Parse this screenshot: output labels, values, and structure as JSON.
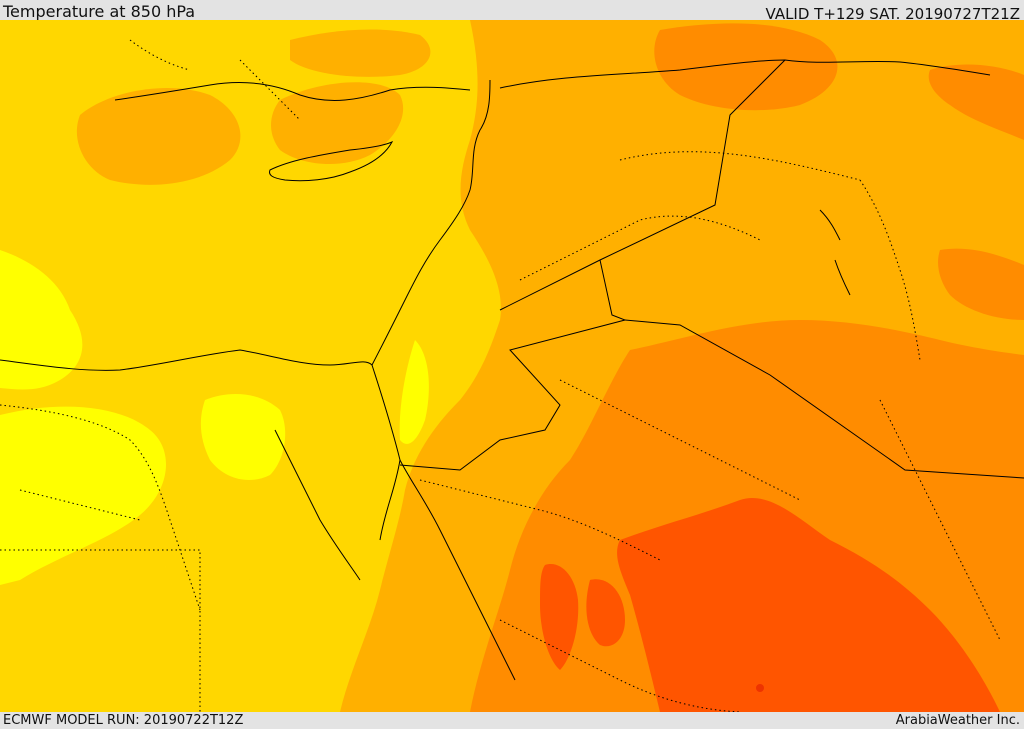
{
  "header": {
    "title": "Temperature at 850 hPa",
    "valid": "VALID T+129 SAT. 20190727T21Z"
  },
  "footer": {
    "model_run": "ECMWF MODEL RUN: 20190722T12Z",
    "credit": "ArabiaWeather Inc."
  },
  "colors": {
    "band_light_yellow": "#ffff00",
    "band_yellow": "#ffd700",
    "band_gold": "#ffb000",
    "band_orange": "#ff8c00",
    "band_red_orange": "#ff5500",
    "band_red": "#ee3300",
    "coast_line": "#000000"
  }
}
